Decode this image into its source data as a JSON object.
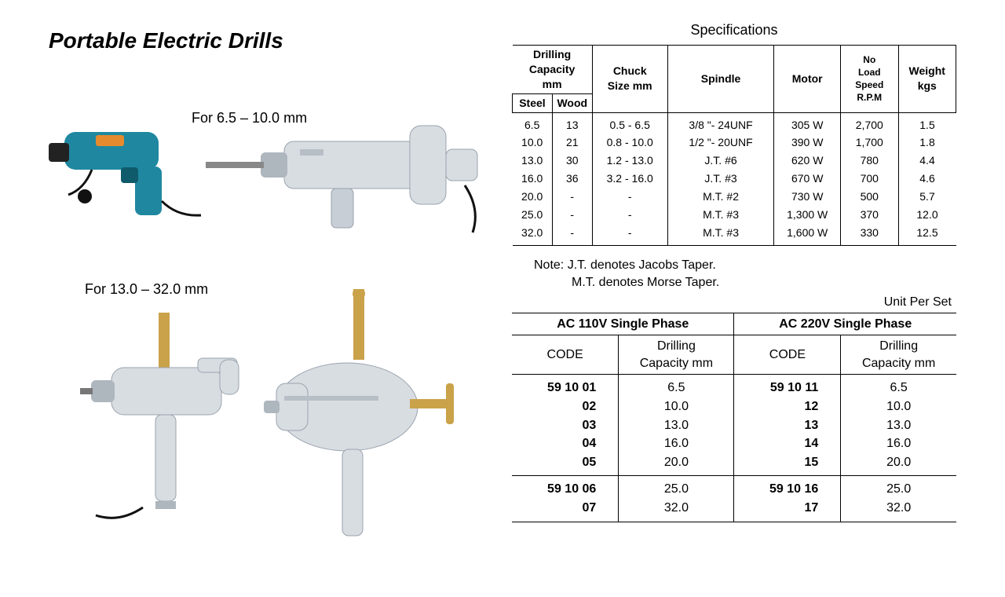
{
  "title": "Portable Electric Drills",
  "captions": {
    "small_range": "For 6.5 – 10.0 mm",
    "large_range": "For 13.0 – 32.0 mm"
  },
  "specs_heading": "Specifications",
  "specs_table": {
    "headers": {
      "drilling_capacity": "Drilling\nCapacity\nmm",
      "steel": "Steel",
      "wood": "Wood",
      "chuck": "Chuck\nSize mm",
      "spindle": "Spindle",
      "motor": "Motor",
      "rpm": "No\nLoad\nSpeed\nR.P.M",
      "weight": "Weight\nkgs"
    },
    "rows": [
      {
        "steel": "6.5",
        "wood": "13",
        "chuck": "0.5  -  6.5",
        "spindle": "3/8 \"- 24UNF",
        "motor": "305 W",
        "rpm": "2,700",
        "weight": "1.5"
      },
      {
        "steel": "10.0",
        "wood": "21",
        "chuck": "0.8 - 10.0",
        "spindle": "1/2 \"- 20UNF",
        "motor": "390 W",
        "rpm": "1,700",
        "weight": "1.8"
      },
      {
        "steel": "13.0",
        "wood": "30",
        "chuck": "1.2 - 13.0",
        "spindle": "J.T. #6",
        "motor": "620 W",
        "rpm": "780",
        "weight": "4.4"
      },
      {
        "steel": "16.0",
        "wood": "36",
        "chuck": "3.2 - 16.0",
        "spindle": "J.T. #3",
        "motor": "670 W",
        "rpm": "700",
        "weight": "4.6"
      },
      {
        "steel": "20.0",
        "wood": "-",
        "chuck": "-",
        "spindle": "M.T. #2",
        "motor": "730 W",
        "rpm": "500",
        "weight": "5.7"
      },
      {
        "steel": "25.0",
        "wood": "-",
        "chuck": "-",
        "spindle": "M.T. #3",
        "motor": "1,300 W",
        "rpm": "370",
        "weight": "12.0"
      },
      {
        "steel": "32.0",
        "wood": "-",
        "chuck": "-",
        "spindle": "M.T. #3",
        "motor": "1,600 W",
        "rpm": "330",
        "weight": "12.5"
      }
    ]
  },
  "note_lines": [
    "Note:  J.T. denotes Jacobs Taper.",
    "M.T. denotes Morse Taper."
  ],
  "unit_per_set": "Unit Per Set",
  "codes_table": {
    "group_headers": {
      "ac110": "AC 110V Single Phase",
      "ac220": "AC 220V Single Phase"
    },
    "col_headers": {
      "code": "CODE",
      "capacity": "Drilling\nCapacity mm"
    },
    "section1": [
      {
        "code110": "59 10 01",
        "cap110": "6.5",
        "code220": "59 10 11",
        "cap220": "6.5"
      },
      {
        "code110": "02",
        "cap110": "10.0",
        "code220": "12",
        "cap220": "10.0"
      },
      {
        "code110": "03",
        "cap110": "13.0",
        "code220": "13",
        "cap220": "13.0"
      },
      {
        "code110": "04",
        "cap110": "16.0",
        "code220": "14",
        "cap220": "16.0"
      },
      {
        "code110": "05",
        "cap110": "20.0",
        "code220": "15",
        "cap220": "20.0"
      }
    ],
    "section2": [
      {
        "code110": "59 10 06",
        "cap110": "25.0",
        "code220": "59 10 16",
        "cap220": "25.0"
      },
      {
        "code110": "07",
        "cap110": "32.0",
        "code220": "17",
        "cap220": "32.0"
      }
    ]
  },
  "colors": {
    "drill_teal": "#1f88a0",
    "drill_silver": "#d8dde2",
    "drill_silver_dark": "#aeb6be",
    "brass": "#caa24a",
    "black": "#000000",
    "white": "#ffffff"
  },
  "layout": {
    "specs_col_widths_pct": [
      9,
      9,
      17,
      23,
      15,
      12,
      12
    ],
    "codes_col_widths_pct": [
      24,
      26,
      24,
      26
    ]
  }
}
